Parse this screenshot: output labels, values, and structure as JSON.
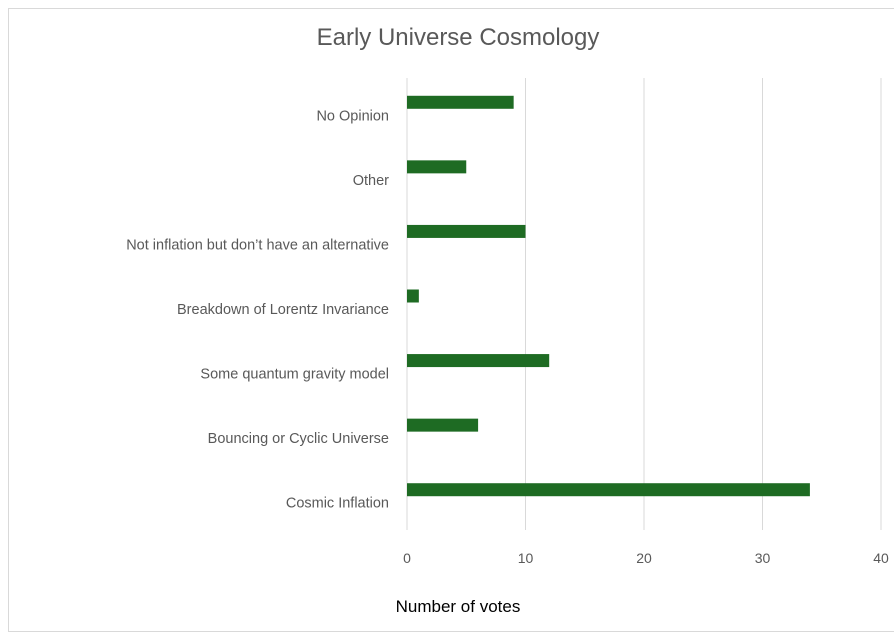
{
  "chart_data": {
    "type": "bar",
    "orientation": "horizontal",
    "title": "Early Universe Cosmology",
    "xlabel": "Number of votes",
    "ylabel": "",
    "categories": [
      "Cosmic Inflation",
      "Bouncing or Cyclic Universe",
      "Some quantum gravity model",
      "Breakdown of Lorentz Invariance",
      "Not inflation but don’t have an alternative",
      "Other",
      "No Opinion"
    ],
    "values": [
      34,
      6,
      12,
      1,
      10,
      5,
      9
    ],
    "xlim": [
      0,
      40
    ],
    "xticks": [
      "0",
      "10",
      "20",
      "30",
      "40"
    ],
    "grid": "vertical",
    "legend": "none",
    "colors": {
      "bar": "#1e6b23",
      "grid": "#d9d9d9",
      "text": "#595959"
    }
  }
}
